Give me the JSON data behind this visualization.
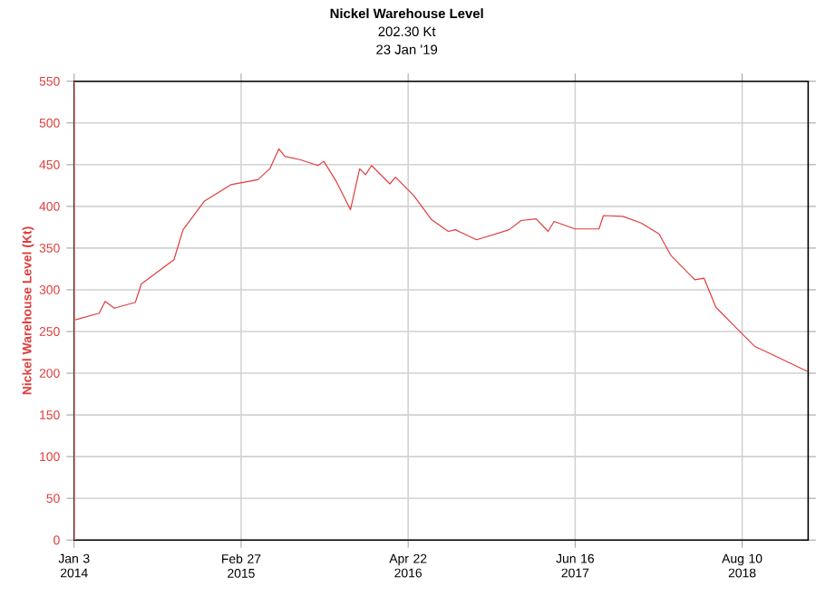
{
  "chart_data": {
    "type": "line",
    "title": "Nickel Warehouse Level",
    "subtitle": "202.30 Kt",
    "annotations": [
      "23 Jan '19"
    ],
    "ylabel": "Nickel Warehouse Level (Kt)",
    "x": [
      "2014-01-06",
      "2014-03-07",
      "2014-03-22",
      "2014-04-14",
      "2014-06-06",
      "2014-06-21",
      "2014-09-11",
      "2014-10-04",
      "2014-11-26",
      "2015-02-01",
      "2015-04-10",
      "2015-05-10",
      "2015-06-02",
      "2015-06-17",
      "2015-07-25",
      "2015-09-08",
      "2015-09-23",
      "2015-10-23",
      "2015-11-29",
      "2015-12-22",
      "2016-01-06",
      "2016-01-21",
      "2016-03-07",
      "2016-03-21",
      "2016-05-06",
      "2016-06-20",
      "2016-08-01",
      "2016-08-19",
      "2016-10-11",
      "2017-01-01",
      "2017-01-31",
      "2017-03-10",
      "2017-04-09",
      "2017-04-24",
      "2017-06-16",
      "2017-08-15",
      "2017-08-26",
      "2017-10-14",
      "2017-11-29",
      "2018-01-13",
      "2018-02-12",
      "2018-04-13",
      "2018-05-06",
      "2018-06-05",
      "2018-07-27",
      "2018-09-11",
      "2018-10-26",
      "2019-01-09",
      "2019-01-23"
    ],
    "series": [
      {
        "color": "#e03c3c",
        "values": [
          264,
          272,
          286,
          278,
          285,
          307,
          336,
          372,
          406,
          426,
          432,
          445,
          469,
          460,
          456,
          449,
          454,
          431,
          396,
          445,
          438,
          449,
          427,
          435,
          413,
          384,
          370,
          372,
          360,
          372,
          383,
          385,
          370,
          382,
          373,
          373,
          389,
          388,
          380,
          367,
          341,
          312,
          314,
          279,
          254,
          232,
          222,
          205,
          202
        ]
      }
    ],
    "xlim": [
      "2014-01-03",
      "2019-01-23"
    ],
    "xticks": [
      {
        "value": "2014-01-03",
        "label": "Jan 3 2014"
      },
      {
        "value": "2015-02-27",
        "label": "Feb 27 2015"
      },
      {
        "value": "2016-04-22",
        "label": "Apr 22 2016"
      },
      {
        "value": "2017-06-16",
        "label": "Jun 16 2017"
      },
      {
        "value": "2018-08-10",
        "label": "Aug 10 2018"
      }
    ],
    "ylim": [
      0,
      550
    ],
    "yticks": [
      0,
      50,
      100,
      150,
      200,
      250,
      300,
      350,
      400,
      450,
      500,
      550
    ],
    "grid": true,
    "marker": "none",
    "line_style": "solid"
  }
}
